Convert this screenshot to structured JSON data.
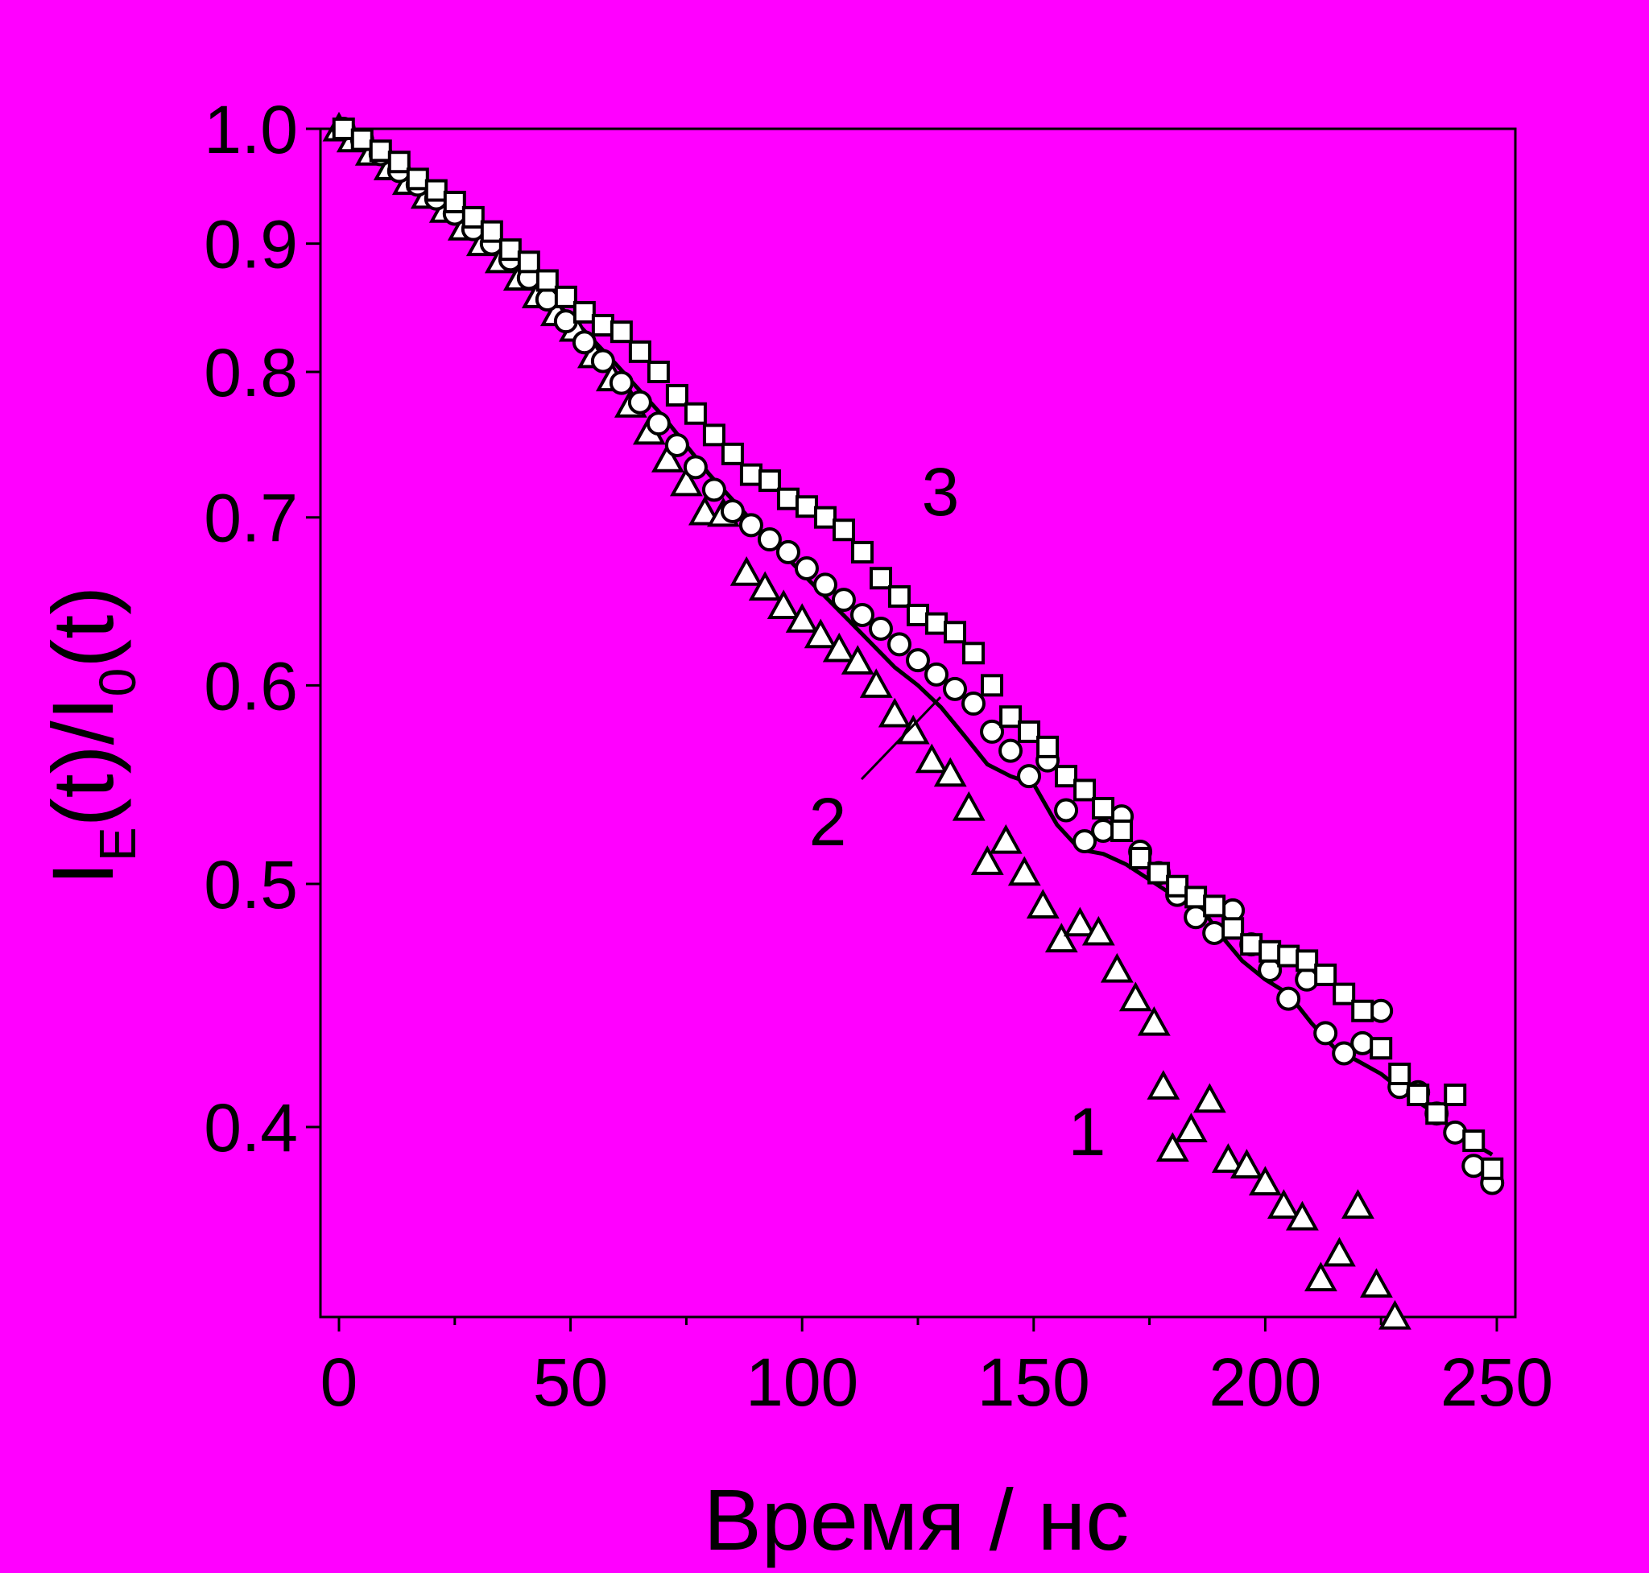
{
  "background_color": "#ff00ff",
  "chart_data": {
    "type": "scatter",
    "xlabel": "Время / нс",
    "ylabel_parts": {
      "main1": "I",
      "sub1": "E",
      "mid": "(t)/I",
      "sub2": "0",
      "tail": "(t)"
    },
    "x_ticks": [
      "0",
      "50",
      "100",
      "150",
      "200",
      "250"
    ],
    "y_ticks": [
      "0.4",
      "0.5",
      "0.6",
      "0.7",
      "0.8",
      "0.9",
      "1.0"
    ],
    "xlim": [
      -4,
      254
    ],
    "ylim": [
      0.336,
      1.0
    ],
    "y_scale": "log",
    "curve_labels": [
      "1",
      "2",
      "3"
    ],
    "series": [
      {
        "label": "1",
        "marker": "triangle",
        "points": [
          [
            0,
            1.0
          ],
          [
            3,
            0.99
          ],
          [
            7,
            0.978
          ],
          [
            11,
            0.965
          ],
          [
            15,
            0.952
          ],
          [
            19,
            0.94
          ],
          [
            23,
            0.928
          ],
          [
            27,
            0.913
          ],
          [
            31,
            0.9
          ],
          [
            35,
            0.886
          ],
          [
            39,
            0.872
          ],
          [
            43,
            0.858
          ],
          [
            47,
            0.844
          ],
          [
            51,
            0.832
          ],
          [
            55,
            0.812
          ],
          [
            59,
            0.795
          ],
          [
            63,
            0.776
          ],
          [
            67,
            0.757
          ],
          [
            71,
            0.738
          ],
          [
            75,
            0.722
          ],
          [
            79,
            0.703
          ],
          [
            83,
            0.702
          ],
          [
            88,
            0.665
          ],
          [
            92,
            0.656
          ],
          [
            96,
            0.645
          ],
          [
            100,
            0.637
          ],
          [
            104,
            0.628
          ],
          [
            108,
            0.62
          ],
          [
            112,
            0.613
          ],
          [
            116,
            0.6
          ],
          [
            120,
            0.584
          ],
          [
            124,
            0.575
          ],
          [
            128,
            0.56
          ],
          [
            132,
            0.553
          ],
          [
            136,
            0.536
          ],
          [
            140,
            0.51
          ],
          [
            144,
            0.52
          ],
          [
            148,
            0.505
          ],
          [
            152,
            0.49
          ],
          [
            156,
            0.475
          ],
          [
            160,
            0.482
          ],
          [
            164,
            0.478
          ],
          [
            168,
            0.462
          ],
          [
            172,
            0.45
          ],
          [
            176,
            0.44
          ],
          [
            178,
            0.415
          ],
          [
            180,
            0.392
          ],
          [
            184,
            0.399
          ],
          [
            188,
            0.41
          ],
          [
            192,
            0.388
          ],
          [
            196,
            0.386
          ],
          [
            200,
            0.38
          ],
          [
            204,
            0.372
          ],
          [
            208,
            0.368
          ],
          [
            212,
            0.348
          ],
          [
            216,
            0.356
          ],
          [
            220,
            0.372
          ],
          [
            224,
            0.346
          ],
          [
            228,
            0.336
          ]
        ]
      },
      {
        "label": "2",
        "marker": "circle",
        "points": [
          [
            1,
            1.0
          ],
          [
            5,
            0.99
          ],
          [
            9,
            0.977
          ],
          [
            13,
            0.962
          ],
          [
            17,
            0.95
          ],
          [
            21,
            0.938
          ],
          [
            25,
            0.925
          ],
          [
            29,
            0.912
          ],
          [
            33,
            0.9
          ],
          [
            37,
            0.887
          ],
          [
            41,
            0.872
          ],
          [
            45,
            0.855
          ],
          [
            49,
            0.838
          ],
          [
            53,
            0.822
          ],
          [
            57,
            0.808
          ],
          [
            61,
            0.792
          ],
          [
            65,
            0.778
          ],
          [
            69,
            0.763
          ],
          [
            73,
            0.748
          ],
          [
            77,
            0.733
          ],
          [
            81,
            0.718
          ],
          [
            85,
            0.704
          ],
          [
            89,
            0.695
          ],
          [
            93,
            0.686
          ],
          [
            97,
            0.678
          ],
          [
            101,
            0.668
          ],
          [
            105,
            0.658
          ],
          [
            109,
            0.649
          ],
          [
            113,
            0.64
          ],
          [
            117,
            0.632
          ],
          [
            121,
            0.623
          ],
          [
            125,
            0.614
          ],
          [
            129,
            0.606
          ],
          [
            133,
            0.598
          ],
          [
            137,
            0.59
          ],
          [
            141,
            0.575
          ],
          [
            145,
            0.565
          ],
          [
            149,
            0.552
          ],
          [
            153,
            0.56
          ],
          [
            157,
            0.535
          ],
          [
            161,
            0.52
          ],
          [
            165,
            0.525
          ],
          [
            169,
            0.532
          ],
          [
            173,
            0.515
          ],
          [
            177,
            0.505
          ],
          [
            181,
            0.495
          ],
          [
            185,
            0.485
          ],
          [
            189,
            0.478
          ],
          [
            193,
            0.488
          ],
          [
            197,
            0.473
          ],
          [
            201,
            0.462
          ],
          [
            205,
            0.45
          ],
          [
            209,
            0.458
          ],
          [
            213,
            0.436
          ],
          [
            217,
            0.428
          ],
          [
            221,
            0.432
          ],
          [
            225,
            0.445
          ],
          [
            229,
            0.415
          ],
          [
            233,
            0.413
          ],
          [
            237,
            0.405
          ],
          [
            241,
            0.398
          ],
          [
            245,
            0.386
          ],
          [
            249,
            0.38
          ]
        ]
      },
      {
        "label": "3",
        "marker": "square",
        "points": [
          [
            1,
            1.0
          ],
          [
            5,
            0.99
          ],
          [
            9,
            0.98
          ],
          [
            13,
            0.97
          ],
          [
            17,
            0.955
          ],
          [
            21,
            0.945
          ],
          [
            25,
            0.935
          ],
          [
            29,
            0.922
          ],
          [
            33,
            0.91
          ],
          [
            37,
            0.895
          ],
          [
            41,
            0.885
          ],
          [
            45,
            0.87
          ],
          [
            49,
            0.857
          ],
          [
            53,
            0.845
          ],
          [
            57,
            0.835
          ],
          [
            61,
            0.83
          ],
          [
            65,
            0.815
          ],
          [
            69,
            0.8
          ],
          [
            73,
            0.783
          ],
          [
            77,
            0.77
          ],
          [
            81,
            0.755
          ],
          [
            85,
            0.742
          ],
          [
            89,
            0.728
          ],
          [
            93,
            0.724
          ],
          [
            97,
            0.712
          ],
          [
            101,
            0.707
          ],
          [
            105,
            0.7
          ],
          [
            109,
            0.692
          ],
          [
            113,
            0.678
          ],
          [
            117,
            0.662
          ],
          [
            121,
            0.651
          ],
          [
            125,
            0.64
          ],
          [
            129,
            0.635
          ],
          [
            133,
            0.63
          ],
          [
            137,
            0.618
          ],
          [
            141,
            0.6
          ],
          [
            145,
            0.583
          ],
          [
            149,
            0.575
          ],
          [
            153,
            0.567
          ],
          [
            157,
            0.552
          ],
          [
            161,
            0.545
          ],
          [
            165,
            0.536
          ],
          [
            169,
            0.525
          ],
          [
            173,
            0.512
          ],
          [
            177,
            0.505
          ],
          [
            181,
            0.499
          ],
          [
            185,
            0.494
          ],
          [
            189,
            0.49
          ],
          [
            193,
            0.48
          ],
          [
            197,
            0.473
          ],
          [
            201,
            0.47
          ],
          [
            205,
            0.468
          ],
          [
            209,
            0.466
          ],
          [
            213,
            0.46
          ],
          [
            217,
            0.452
          ],
          [
            221,
            0.445
          ],
          [
            225,
            0.43
          ],
          [
            229,
            0.42
          ],
          [
            233,
            0.412
          ],
          [
            237,
            0.405
          ],
          [
            241,
            0.412
          ],
          [
            245,
            0.395
          ],
          [
            249,
            0.385
          ]
        ]
      }
    ],
    "fit_line_points": [
      [
        0,
        1.0
      ],
      [
        10,
        0.968
      ],
      [
        20,
        0.935
      ],
      [
        30,
        0.904
      ],
      [
        40,
        0.873
      ],
      [
        50,
        0.842
      ],
      [
        60,
        0.805
      ],
      [
        70,
        0.768
      ],
      [
        80,
        0.728
      ],
      [
        90,
        0.695
      ],
      [
        100,
        0.665
      ],
      [
        110,
        0.637
      ],
      [
        120,
        0.61
      ],
      [
        125,
        0.6
      ],
      [
        130,
        0.588
      ],
      [
        135,
        0.573
      ],
      [
        140,
        0.558
      ],
      [
        145,
        0.552
      ],
      [
        150,
        0.548
      ],
      [
        155,
        0.528
      ],
      [
        160,
        0.516
      ],
      [
        165,
        0.514
      ],
      [
        170,
        0.509
      ],
      [
        175,
        0.502
      ],
      [
        180,
        0.495
      ],
      [
        185,
        0.493
      ],
      [
        190,
        0.478
      ],
      [
        195,
        0.466
      ],
      [
        200,
        0.458
      ],
      [
        205,
        0.452
      ],
      [
        210,
        0.44
      ],
      [
        215,
        0.43
      ],
      [
        220,
        0.425
      ],
      [
        225,
        0.42
      ],
      [
        230,
        0.413
      ],
      [
        235,
        0.407
      ],
      [
        240,
        0.4
      ],
      [
        245,
        0.394
      ],
      [
        249,
        0.39
      ]
    ]
  }
}
